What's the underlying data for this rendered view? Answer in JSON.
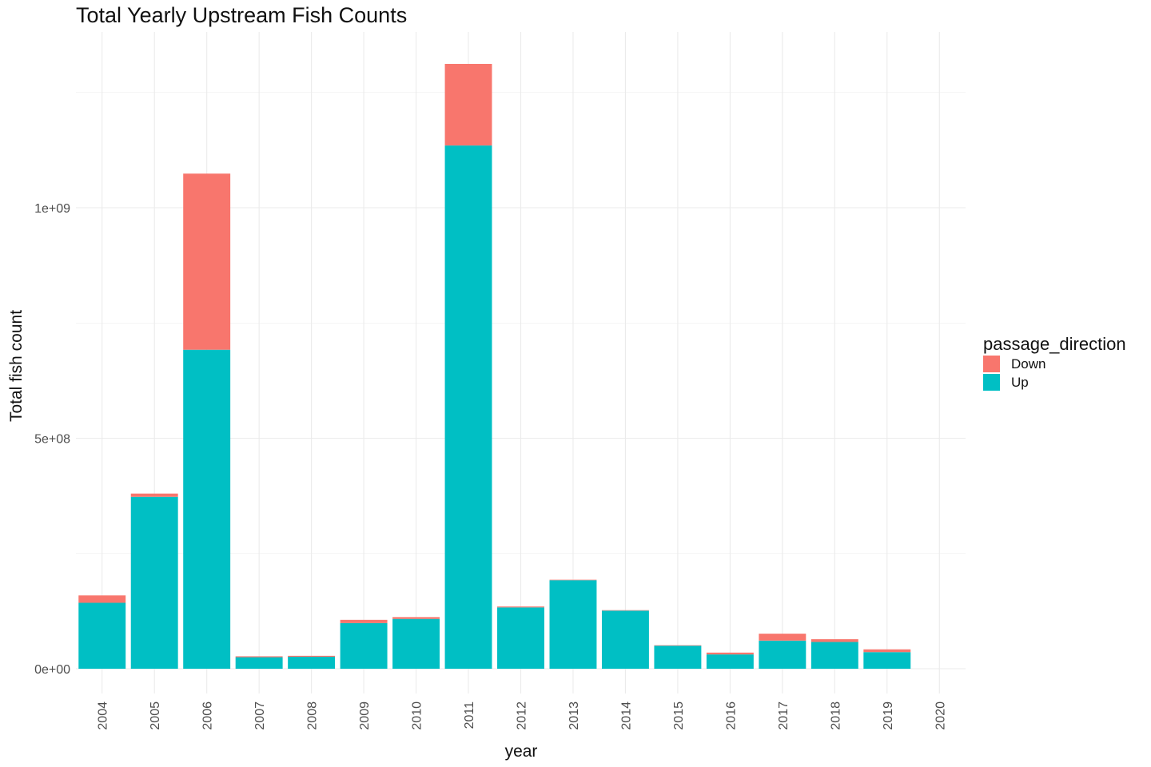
{
  "chart_data": {
    "type": "bar",
    "stacked": true,
    "title": "Total Yearly Upstream Fish Counts",
    "xlabel": "year",
    "ylabel": "Total fish count",
    "categories": [
      "2004",
      "2005",
      "2006",
      "2007",
      "2008",
      "2009",
      "2010",
      "2011",
      "2012",
      "2013",
      "2014",
      "2015",
      "2016",
      "2017",
      "2018",
      "2019",
      "2020"
    ],
    "series": [
      {
        "name": "Up",
        "color": "#00BFC4",
        "values": [
          143000000,
          373000000,
          692000000,
          25000000,
          26000000,
          99000000,
          108000000,
          1135000000,
          133000000,
          192000000,
          126000000,
          50000000,
          31000000,
          61000000,
          58000000,
          36000000,
          0
        ]
      },
      {
        "name": "Down",
        "color": "#F8766D",
        "values": [
          16000000,
          7000000,
          382000000,
          2000000,
          2000000,
          7000000,
          4000000,
          177000000,
          2000000,
          1000000,
          1000000,
          1000000,
          4000000,
          15000000,
          6000000,
          6000000,
          0
        ]
      }
    ],
    "stack_order": [
      "Up",
      "Down"
    ],
    "y_ticks": [
      0,
      500000000,
      1000000000
    ],
    "y_tick_labels": [
      "0e+00",
      "5e+08",
      "1e+09"
    ],
    "ylim": [
      -50000000,
      1380000000
    ],
    "grid": true,
    "legend": {
      "title": "passage_direction",
      "placement": "right",
      "entries": [
        {
          "name": "Down",
          "color": "#F8766D"
        },
        {
          "name": "Up",
          "color": "#00BFC4"
        }
      ]
    }
  }
}
